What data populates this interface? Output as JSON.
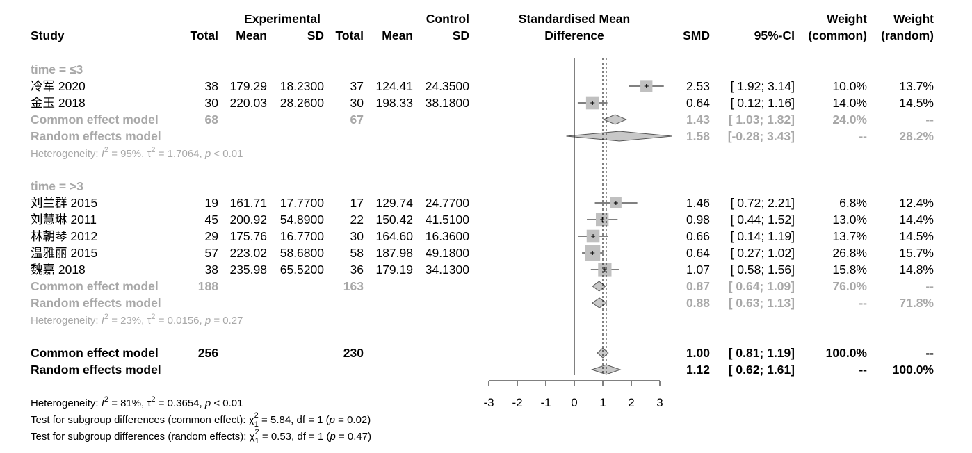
{
  "headers": {
    "study": "Study",
    "experimental": "Experimental",
    "control": "Control",
    "total": "Total",
    "mean": "Mean",
    "sd": "SD",
    "plot_title_1": "Standardised Mean",
    "plot_title_2": "Difference",
    "smd": "SMD",
    "ci": "95%-CI",
    "weight": "Weight",
    "weight_common": "(common)",
    "weight_random": "(random)"
  },
  "chart_data": {
    "type": "forest",
    "title": "Standardised Mean Difference",
    "xlabel": "Standardised Mean Difference",
    "xlim": [
      -3,
      3
    ],
    "xticks": [
      -3,
      -2,
      -1,
      0,
      1,
      2,
      3
    ],
    "x_tick_labels": [
      "-3",
      "-2",
      "-1",
      "0",
      "1",
      "2",
      "3"
    ],
    "common_line": 1.0,
    "random_line": 1.12,
    "groups": [
      {
        "label": "time = ≤3",
        "studies": [
          {
            "name": "冷军",
            "year": "2020",
            "e_total": "38",
            "e_mean": "179.29",
            "e_sd": "18.2300",
            "c_total": "37",
            "c_mean": "124.41",
            "c_sd": "24.3500",
            "smd": 2.53,
            "lo": 1.92,
            "hi": 3.14,
            "ci_text": "[ 1.92; 3.14]",
            "smd_text": "2.53",
            "w_common": "10.0%",
            "w_random": "13.7%",
            "w_common_value": 10.0
          },
          {
            "name": "金玉",
            "year": "2018",
            "e_total": "30",
            "e_mean": "220.03",
            "e_sd": "28.2600",
            "c_total": "30",
            "c_mean": "198.33",
            "c_sd": "38.1800",
            "smd": 0.64,
            "lo": 0.12,
            "hi": 1.16,
            "ci_text": "[ 0.12; 1.16]",
            "smd_text": "0.64",
            "w_common": "14.0%",
            "w_random": "14.5%",
            "w_common_value": 14.0
          }
        ],
        "common": {
          "label": "Common effect model",
          "e_total": "68",
          "c_total": "67",
          "smd": 1.43,
          "lo": 1.03,
          "hi": 1.82,
          "smd_text": "1.43",
          "ci_text": "[ 1.03; 1.82]",
          "w_common": "24.0%",
          "w_random": "--"
        },
        "random": {
          "label": "Random effects model",
          "smd": 1.58,
          "lo": -0.28,
          "hi": 3.43,
          "smd_text": "1.58",
          "ci_text": "[-0.28; 3.43]",
          "w_common": "--",
          "w_random": "28.2%"
        },
        "heterogeneity": {
          "prefix": "Heterogeneity: ",
          "i2": "= 95%, ",
          "tau2": " = 1.7064, ",
          "p": " < 0.01"
        }
      },
      {
        "label": "time = >3",
        "studies": [
          {
            "name": "刘兰群",
            "year": "2015",
            "e_total": "19",
            "e_mean": "161.71",
            "e_sd": "17.7700",
            "c_total": "17",
            "c_mean": "129.74",
            "c_sd": "24.7700",
            "smd": 1.46,
            "lo": 0.72,
            "hi": 2.21,
            "ci_text": "[ 0.72; 2.21]",
            "smd_text": "1.46",
            "w_common": "6.8%",
            "w_random": "12.4%",
            "w_common_value": 6.8
          },
          {
            "name": "刘慧琳",
            "year": "2011",
            "e_total": "45",
            "e_mean": "200.92",
            "e_sd": "54.8900",
            "c_total": "22",
            "c_mean": "150.42",
            "c_sd": "41.5100",
            "smd": 0.98,
            "lo": 0.44,
            "hi": 1.52,
            "ci_text": "[ 0.44; 1.52]",
            "smd_text": "0.98",
            "w_common": "13.0%",
            "w_random": "14.4%",
            "w_common_value": 13.0
          },
          {
            "name": "林朝琴",
            "year": "2012",
            "e_total": "29",
            "e_mean": "175.76",
            "e_sd": "16.7700",
            "c_total": "30",
            "c_mean": "164.60",
            "c_sd": "16.3600",
            "smd": 0.66,
            "lo": 0.14,
            "hi": 1.19,
            "ci_text": "[ 0.14; 1.19]",
            "smd_text": "0.66",
            "w_common": "13.7%",
            "w_random": "14.5%",
            "w_common_value": 13.7
          },
          {
            "name": "温雅丽",
            "year": "2015",
            "e_total": "57",
            "e_mean": "223.02",
            "e_sd": "58.6800",
            "c_total": "58",
            "c_mean": "187.98",
            "c_sd": "49.1800",
            "smd": 0.64,
            "lo": 0.27,
            "hi": 1.02,
            "ci_text": "[ 0.27; 1.02]",
            "smd_text": "0.64",
            "w_common": "26.8%",
            "w_random": "15.7%",
            "w_common_value": 26.8
          },
          {
            "name": "魏嘉",
            "year": "2018",
            "e_total": "38",
            "e_mean": "235.98",
            "e_sd": "65.5200",
            "c_total": "36",
            "c_mean": "179.19",
            "c_sd": "34.1300",
            "smd": 1.07,
            "lo": 0.58,
            "hi": 1.56,
            "ci_text": "[ 0.58; 1.56]",
            "smd_text": "1.07",
            "w_common": "15.8%",
            "w_random": "14.8%",
            "w_common_value": 15.8
          }
        ],
        "common": {
          "label": "Common effect model",
          "e_total": "188",
          "c_total": "163",
          "smd": 0.87,
          "lo": 0.64,
          "hi": 1.09,
          "smd_text": "0.87",
          "ci_text": "[ 0.64; 1.09]",
          "w_common": "76.0%",
          "w_random": "--"
        },
        "random": {
          "label": "Random effects model",
          "smd": 0.88,
          "lo": 0.63,
          "hi": 1.13,
          "smd_text": "0.88",
          "ci_text": "[ 0.63; 1.13]",
          "w_common": "--",
          "w_random": "71.8%"
        },
        "heterogeneity": {
          "prefix": "Heterogeneity: ",
          "i2": "= 23%, ",
          "tau2": " = 0.0156, ",
          "p": " = 0.27"
        }
      }
    ],
    "overall": {
      "common": {
        "label": "Common effect model",
        "e_total": "256",
        "c_total": "230",
        "smd": 1.0,
        "lo": 0.81,
        "hi": 1.19,
        "smd_text": "1.00",
        "ci_text": "[ 0.81; 1.19]",
        "w_common": "100.0%",
        "w_random": "--"
      },
      "random": {
        "label": "Random effects model",
        "smd": 1.12,
        "lo": 0.62,
        "hi": 1.61,
        "smd_text": "1.12",
        "ci_text": "[ 0.62; 1.61]",
        "w_common": "--",
        "w_random": "100.0%"
      }
    },
    "footer": {
      "heterogeneity": {
        "prefix": "Heterogeneity: ",
        "i2": "= 81%, ",
        "tau2": " = 0.3654, ",
        "p": " < 0.01"
      },
      "test_common": {
        "prefix": "Test for subgroup differences (common effect): ",
        "chi": " = 5.84, df = 1 (",
        "p": " = 0.02)"
      },
      "test_random": {
        "prefix": "Test for subgroup differences (random effects): ",
        "chi": " = 0.53, df = 1 (",
        "p": " = 0.47)"
      }
    }
  }
}
